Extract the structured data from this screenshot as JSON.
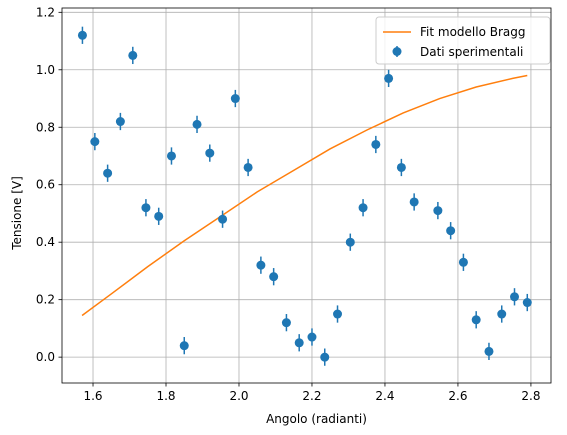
{
  "chart_data": {
    "type": "scatter",
    "xlabel": "Angolo (radianti)",
    "ylabel": "Tensione [V]",
    "xlim": [
      1.515,
      2.855
    ],
    "ylim": [
      -0.09,
      1.215
    ],
    "x_ticks": [
      1.6,
      1.8,
      2.0,
      2.2,
      2.4,
      2.6,
      2.8
    ],
    "y_ticks": [
      0.0,
      0.2,
      0.4,
      0.6,
      0.8,
      1.0,
      1.2
    ],
    "x_tick_labels": [
      "1.6",
      "1.8",
      "2.0",
      "2.2",
      "2.4",
      "2.6",
      "2.8"
    ],
    "y_tick_labels": [
      "0.0",
      "0.2",
      "0.4",
      "0.6",
      "0.8",
      "1.0",
      "1.2"
    ],
    "grid": true,
    "legend_position": "top-right",
    "colors": {
      "data": "#1f77b4",
      "fit": "#ff7f0e"
    },
    "series": [
      {
        "name": "Fit modello Bragg",
        "kind": "line",
        "x": [
          1.57,
          1.65,
          1.75,
          1.85,
          1.95,
          2.05,
          2.15,
          2.25,
          2.35,
          2.45,
          2.55,
          2.65,
          2.75,
          2.79
        ],
        "y": [
          0.145,
          0.22,
          0.315,
          0.405,
          0.49,
          0.575,
          0.65,
          0.725,
          0.79,
          0.85,
          0.9,
          0.94,
          0.97,
          0.98
        ]
      },
      {
        "name": "Dati sperimentali",
        "kind": "errorbar",
        "yerr": 0.03,
        "x": [
          1.571,
          1.605,
          1.64,
          1.675,
          1.709,
          1.745,
          1.78,
          1.815,
          1.85,
          1.885,
          1.92,
          1.955,
          1.99,
          2.025,
          2.06,
          2.095,
          2.13,
          2.165,
          2.2,
          2.235,
          2.27,
          2.305,
          2.34,
          2.375,
          2.41,
          2.445,
          2.48,
          2.545,
          2.58,
          2.615,
          2.65,
          2.685,
          2.72,
          2.755,
          2.79
        ],
        "y": [
          1.12,
          0.75,
          0.64,
          0.82,
          1.05,
          0.52,
          0.49,
          0.7,
          0.04,
          0.81,
          0.71,
          0.48,
          0.9,
          0.66,
          0.32,
          0.28,
          0.12,
          0.05,
          0.07,
          0.0,
          0.15,
          0.4,
          0.52,
          0.74,
          0.97,
          0.66,
          0.54,
          0.51,
          0.44,
          0.33,
          0.13,
          0.02,
          0.15,
          0.21,
          0.19
        ]
      }
    ]
  }
}
